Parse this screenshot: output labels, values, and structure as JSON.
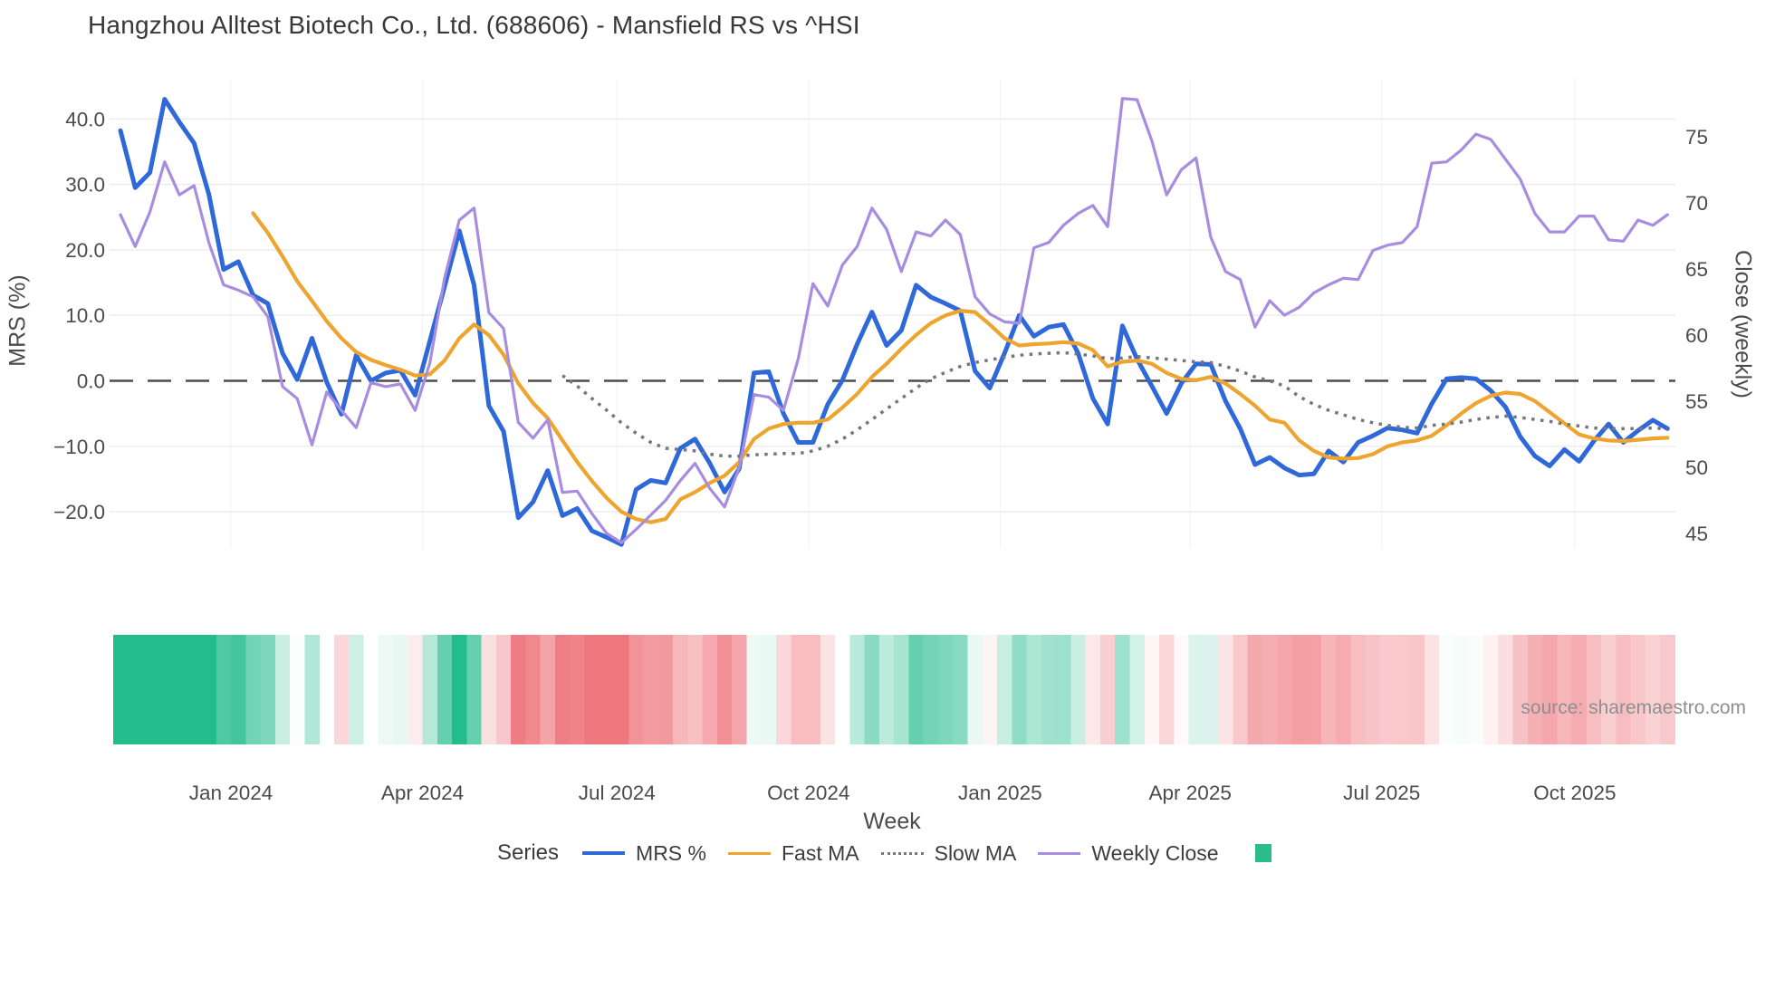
{
  "title": "Hangzhou Alltest Biotech Co., Ltd. (688606) - Mansfield RS vs ^HSI",
  "source": "source: sharemaestro.com",
  "axes": {
    "left": {
      "label": "MRS (%)",
      "ticks": [
        {
          "v": 40,
          "label": "40.0"
        },
        {
          "v": 30,
          "label": "30.0"
        },
        {
          "v": 20,
          "label": "20.0"
        },
        {
          "v": 10,
          "label": "10.0"
        },
        {
          "v": 0,
          "label": "0.0"
        },
        {
          "v": -10,
          "label": "−10.0"
        },
        {
          "v": -20,
          "label": "−20.0"
        }
      ]
    },
    "right": {
      "label": "Close (weekly)",
      "ticks": [
        {
          "v": 75,
          "label": "75"
        },
        {
          "v": 70,
          "label": "70"
        },
        {
          "v": 65,
          "label": "65"
        },
        {
          "v": 60,
          "label": "60"
        },
        {
          "v": 55,
          "label": "55"
        },
        {
          "v": 50,
          "label": "50"
        },
        {
          "v": 45,
          "label": "45"
        }
      ]
    },
    "x": {
      "label": "Week",
      "ticks": [
        {
          "week": 7.5,
          "label": "Jan 2024"
        },
        {
          "week": 20.5,
          "label": "Apr 2024"
        },
        {
          "week": 33.7,
          "label": "Jul 2024"
        },
        {
          "week": 46.7,
          "label": "Oct 2024"
        },
        {
          "week": 59.7,
          "label": "Jan 2025"
        },
        {
          "week": 72.6,
          "label": "Apr 2025"
        },
        {
          "week": 85.6,
          "label": "Jul 2025"
        },
        {
          "week": 98.7,
          "label": "Oct 2025"
        }
      ]
    }
  },
  "legend": {
    "title": "Series",
    "heatmap_swatch_color": "#2bbd8b"
  },
  "colors": {
    "background": "#ffffff",
    "gridline": "#e9ebee",
    "vgridline": "#f3f4f6",
    "zero_line": "#4d4d4d",
    "tick_text": "#4b4b4b",
    "title_text": "#383838",
    "source_text": "#8f8f8f"
  },
  "chart_data": {
    "type": "line",
    "title": "Hangzhou Alltest Biotech Co., Ltd. (688606) - Mansfield RS vs ^HSI",
    "xlabel": "Week",
    "ylabel_left": "MRS (%)",
    "ylabel_right": "Close (weekly)",
    "x_unit": "week_index_0_to_105",
    "ylim_left": [
      -26,
      46
    ],
    "ylim_right": [
      44,
      79
    ],
    "grid": true,
    "legend_position": "bottom",
    "series": [
      {
        "name": "MRS %",
        "color": "#2e68d9",
        "style": "solid",
        "width": 5,
        "axis": "left",
        "start_week": 0,
        "values": [
          38.2,
          29.5,
          31.8,
          43.0,
          39.5,
          36.3,
          28.5,
          17.0,
          18.2,
          13.1,
          11.8,
          4.2,
          0.2,
          6.5,
          -0.2,
          -5.1,
          3.9,
          0.0,
          1.2,
          1.6,
          -2.2,
          6.1,
          14.4,
          22.9,
          14.6,
          -3.8,
          -7.7,
          -20.9,
          -18.5,
          -13.7,
          -20.6,
          -19.5,
          -22.9,
          -23.9,
          -25.0,
          -16.6,
          -15.2,
          -15.6,
          -10.3,
          -8.9,
          -12.6,
          -17.0,
          -13.4,
          1.2,
          1.4,
          -5.0,
          -9.4,
          -9.4,
          -3.6,
          0.1,
          5.6,
          10.5,
          5.4,
          7.7,
          14.6,
          12.8,
          11.8,
          10.7,
          1.5,
          -1.1,
          4.2,
          10.0,
          6.8,
          8.2,
          8.6,
          4.2,
          -2.7,
          -6.6,
          8.4,
          3.3,
          -0.8,
          -5.0,
          -0.4,
          2.6,
          2.5,
          -3.1,
          -7.3,
          -12.8,
          -11.7,
          -13.3,
          -14.4,
          -14.2,
          -10.7,
          -12.4,
          -9.4,
          -8.4,
          -7.2,
          -7.5,
          -8.0,
          -3.5,
          0.3,
          0.5,
          0.3,
          -1.5,
          -4.0,
          -8.5,
          -11.5,
          -13.0,
          -10.5,
          -12.3,
          -9.2,
          -6.6,
          -9.4,
          -7.6,
          -6.0,
          -7.3
        ]
      },
      {
        "name": "Fast MA",
        "color": "#eda52f",
        "style": "solid",
        "width": 4.2,
        "axis": "left",
        "start_week": 9,
        "values": [
          25.6,
          22.6,
          19.0,
          15.2,
          12.2,
          9.1,
          6.5,
          4.4,
          3.2,
          2.4,
          1.7,
          0.8,
          1.0,
          3.1,
          6.5,
          8.6,
          7.0,
          4.0,
          -0.4,
          -3.4,
          -5.7,
          -9.1,
          -12.4,
          -15.3,
          -17.9,
          -20.0,
          -21.1,
          -21.6,
          -21.1,
          -18.1,
          -17.0,
          -15.6,
          -14.5,
          -12.4,
          -8.9,
          -7.3,
          -6.6,
          -6.4,
          -6.4,
          -5.9,
          -4.1,
          -2.0,
          0.6,
          2.6,
          4.9,
          7.0,
          8.8,
          10.0,
          10.7,
          10.5,
          8.6,
          6.5,
          5.4,
          5.6,
          5.7,
          5.9,
          5.7,
          4.7,
          2.2,
          2.9,
          3.1,
          2.6,
          1.2,
          0.3,
          0.1,
          0.6,
          -0.4,
          -2.0,
          -3.8,
          -5.9,
          -6.4,
          -9.1,
          -10.7,
          -11.7,
          -11.9,
          -11.8,
          -11.2,
          -10.0,
          -9.4,
          -9.1,
          -8.4,
          -6.8,
          -5.0,
          -3.4,
          -2.3,
          -1.8,
          -2.0,
          -3.1,
          -4.8,
          -6.5,
          -8.2,
          -8.8,
          -9.1,
          -9.2,
          -9.0,
          -8.8,
          -8.7
        ]
      },
      {
        "name": "Slow MA",
        "color": "#76767e",
        "style": "dotted",
        "width": 3.5,
        "axis": "left",
        "start_week": 30,
        "values": [
          0.8,
          -0.8,
          -2.7,
          -4.5,
          -6.4,
          -8.0,
          -9.4,
          -10.3,
          -10.5,
          -10.7,
          -11.2,
          -11.5,
          -11.5,
          -11.3,
          -11.2,
          -11.1,
          -11.1,
          -10.7,
          -10.0,
          -8.9,
          -7.5,
          -5.9,
          -4.3,
          -2.7,
          -1.1,
          0.3,
          1.3,
          2.2,
          2.8,
          3.2,
          3.6,
          3.9,
          4.1,
          4.2,
          4.3,
          4.1,
          3.8,
          3.4,
          3.5,
          3.7,
          3.5,
          3.3,
          3.1,
          2.9,
          2.8,
          2.2,
          1.5,
          0.6,
          0.0,
          -0.8,
          -2.4,
          -3.6,
          -4.5,
          -5.2,
          -5.9,
          -6.4,
          -6.8,
          -7.1,
          -7.2,
          -6.8,
          -6.6,
          -6.3,
          -5.9,
          -5.6,
          -5.4,
          -5.6,
          -5.9,
          -6.2,
          -6.6,
          -6.9,
          -7.2,
          -7.3,
          -7.3,
          -7.3,
          -7.2,
          -7.3
        ]
      },
      {
        "name": "Weekly Close",
        "color": "#a88ce0",
        "style": "solid",
        "width": 3.2,
        "axis": "right",
        "start_week": 0,
        "values": [
          69.1,
          66.7,
          69.3,
          73.1,
          70.6,
          71.3,
          67.0,
          63.8,
          63.4,
          62.9,
          61.4,
          56.1,
          55.2,
          51.7,
          55.7,
          54.3,
          53.0,
          56.4,
          56.1,
          56.3,
          54.3,
          57.9,
          64.3,
          68.7,
          69.6,
          61.7,
          60.5,
          53.4,
          52.2,
          53.6,
          48.1,
          48.2,
          46.5,
          45.0,
          44.3,
          45.3,
          46.4,
          47.5,
          49.0,
          50.3,
          48.4,
          47.0,
          50.0,
          55.5,
          55.3,
          54.3,
          58.2,
          63.9,
          62.2,
          65.3,
          66.7,
          69.6,
          68.0,
          64.8,
          67.8,
          67.5,
          68.7,
          67.6,
          62.9,
          61.6,
          61.0,
          60.9,
          66.6,
          67.0,
          68.3,
          69.2,
          69.8,
          68.2,
          77.9,
          77.8,
          74.7,
          70.6,
          72.5,
          73.4,
          67.4,
          64.8,
          64.2,
          60.6,
          62.6,
          61.5,
          62.1,
          63.2,
          63.8,
          64.3,
          64.2,
          66.4,
          66.8,
          67.0,
          68.2,
          73.0,
          73.1,
          74.0,
          75.2,
          74.8,
          73.3,
          71.8,
          69.2,
          67.8,
          67.8,
          69.0,
          69.0,
          67.2,
          67.1,
          68.7,
          68.3,
          69.1
        ]
      }
    ],
    "heatmap": {
      "based_on": "MRS %",
      "positive_color": "#23bc8b",
      "negative_color": "#ee767d",
      "saturation_abs": 22,
      "missing_weeks": [
        14
      ]
    }
  }
}
